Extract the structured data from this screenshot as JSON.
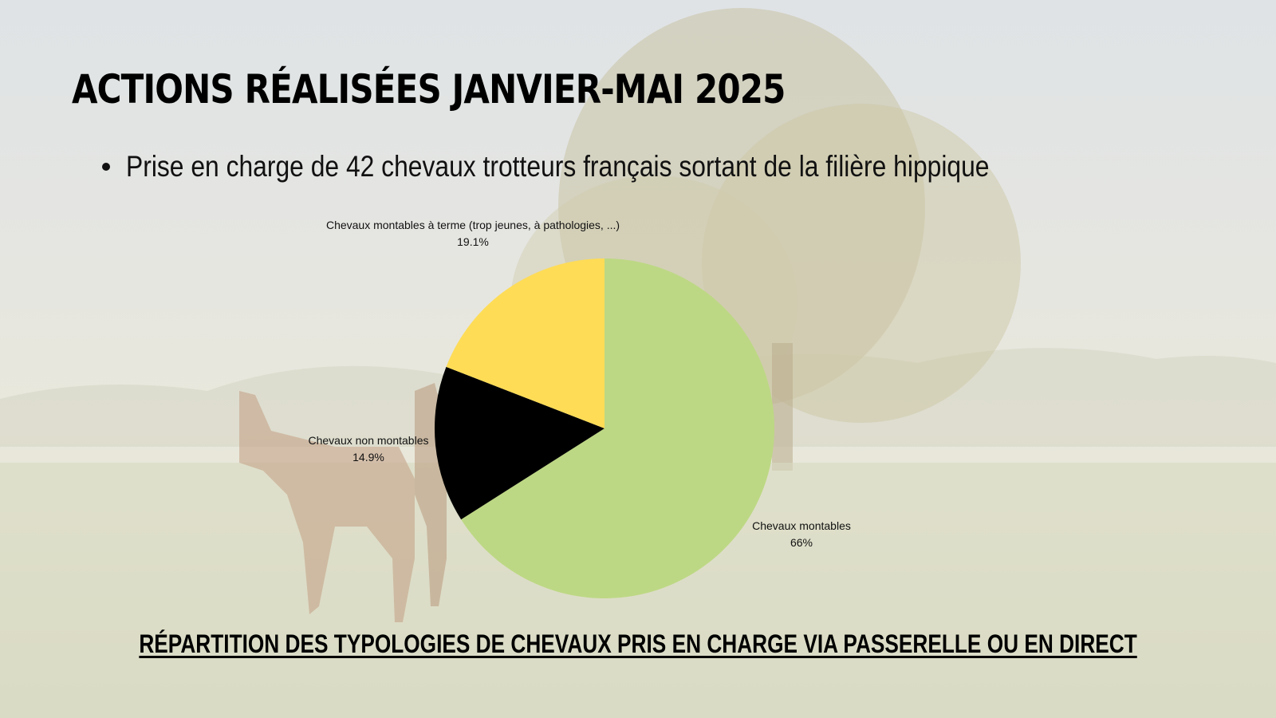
{
  "slide": {
    "title": "ACTIONS RÉALISÉES JANVIER-MAI 2025",
    "bullet": "Prise en charge de 42 chevaux trotteurs français sortant de la filière hippique",
    "caption": "RÉPARTITION DES TYPOLOGIES DE CHEVAUX PRIS EN CHARGE VIA PASSERELLE OU EN DIRECT"
  },
  "chart_data": {
    "type": "pie",
    "title": "",
    "slices": [
      {
        "label": "Chevaux montables",
        "value": 66,
        "value_label": "66%",
        "color": "#bdd884"
      },
      {
        "label": "Chevaux non montables",
        "value": 14.9,
        "value_label": "14.9%",
        "color": "#000000"
      },
      {
        "label": "Chevaux montables à terme (trop jeunes, à pathologies, ...)",
        "value": 19.1,
        "value_label": "19.1%",
        "color": "#fedc56"
      }
    ],
    "start": "12 o'clock",
    "direction": "clockwise",
    "legend": "none (direct labels)"
  }
}
